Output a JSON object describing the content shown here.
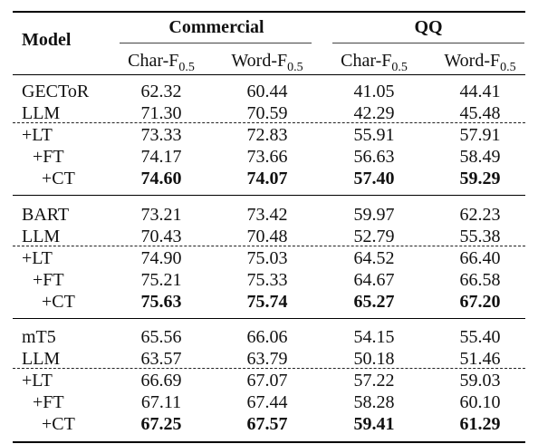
{
  "header": {
    "model_label": "Model",
    "group1": "Commercial",
    "group2": "QQ",
    "columns": [
      {
        "main": "Char-F",
        "sub": "0.5"
      },
      {
        "main": "Word-F",
        "sub": "0.5"
      },
      {
        "main": "Char-F",
        "sub": "0.5"
      },
      {
        "main": "Word-F",
        "sub": "0.5"
      }
    ]
  },
  "sections": [
    {
      "rows": [
        {
          "model": "GECToR",
          "indent": 0,
          "values": [
            "62.32",
            "60.44",
            "41.05",
            "44.41"
          ],
          "bold": false
        },
        {
          "model": "LLM",
          "indent": 0,
          "values": [
            "71.30",
            "70.59",
            "42.29",
            "45.48"
          ],
          "bold": false
        },
        {
          "model": "+LT",
          "indent": 0,
          "values": [
            "73.33",
            "72.83",
            "55.91",
            "57.91"
          ],
          "bold": false
        },
        {
          "model": "+FT",
          "indent": 1,
          "values": [
            "74.17",
            "73.66",
            "56.63",
            "58.49"
          ],
          "bold": false
        },
        {
          "model": "+CT",
          "indent": 2,
          "values": [
            "74.60",
            "74.07",
            "57.40",
            "59.29"
          ],
          "bold": true
        }
      ]
    },
    {
      "rows": [
        {
          "model": "BART",
          "indent": 0,
          "values": [
            "73.21",
            "73.42",
            "59.97",
            "62.23"
          ],
          "bold": false
        },
        {
          "model": "LLM",
          "indent": 0,
          "values": [
            "70.43",
            "70.48",
            "52.79",
            "55.38"
          ],
          "bold": false
        },
        {
          "model": "+LT",
          "indent": 0,
          "values": [
            "74.90",
            "75.03",
            "64.52",
            "66.40"
          ],
          "bold": false
        },
        {
          "model": "+FT",
          "indent": 1,
          "values": [
            "75.21",
            "75.33",
            "64.67",
            "66.58"
          ],
          "bold": false
        },
        {
          "model": "+CT",
          "indent": 2,
          "values": [
            "75.63",
            "75.74",
            "65.27",
            "67.20"
          ],
          "bold": true
        }
      ]
    },
    {
      "rows": [
        {
          "model": "mT5",
          "indent": 0,
          "values": [
            "65.56",
            "66.06",
            "54.15",
            "55.40"
          ],
          "bold": false
        },
        {
          "model": "LLM",
          "indent": 0,
          "values": [
            "63.57",
            "63.79",
            "50.18",
            "51.46"
          ],
          "bold": false
        },
        {
          "model": "+LT",
          "indent": 0,
          "values": [
            "66.69",
            "67.07",
            "57.22",
            "59.03"
          ],
          "bold": false
        },
        {
          "model": "+FT",
          "indent": 1,
          "values": [
            "67.11",
            "67.44",
            "58.28",
            "60.10"
          ],
          "bold": false
        },
        {
          "model": "+CT",
          "indent": 2,
          "values": [
            "67.25",
            "67.57",
            "59.41",
            "61.29"
          ],
          "bold": true
        }
      ]
    }
  ]
}
